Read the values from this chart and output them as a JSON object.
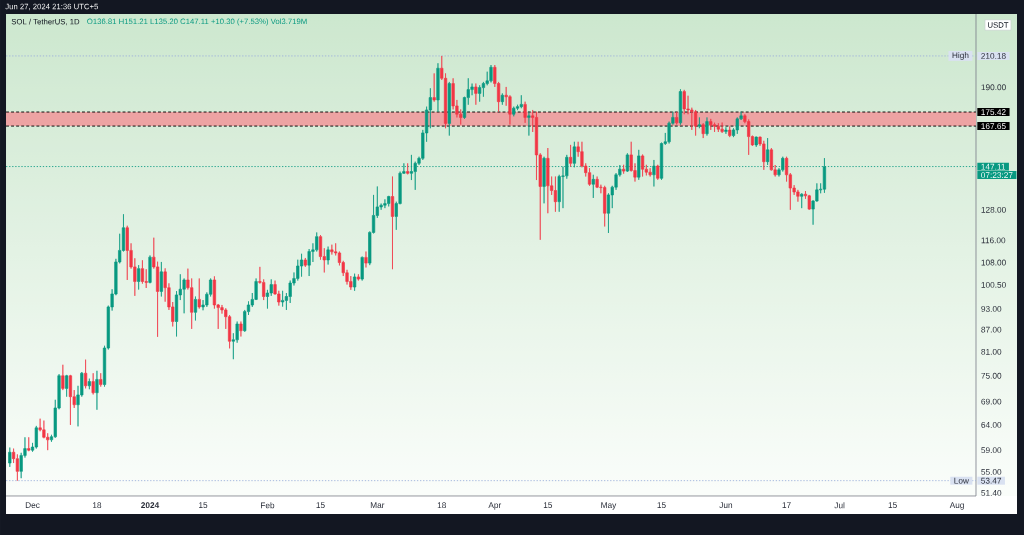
{
  "chart_data": {
    "type": "candlestick",
    "title": "SOL / TetherUS, 1D",
    "subtitle": "O136.81 H151.21 L135.20 C147.11 +10.30 (+7.53%) Vol3.719M",
    "ylabel": "USDT",
    "annotations": [
      "Jun 27, 2024 21:36 UTC+5",
      {
        "text": "High",
        "y": 210.18
      },
      "07:23:27",
      {
        "text": "Low",
        "y": 53.47
      }
    ],
    "x": [
      "2023-11-25",
      "2023-11-26",
      "2023-11-27",
      "2023-11-28",
      "2023-11-29",
      "2023-11-30",
      "2023-12-01",
      "2023-12-02",
      "2023-12-03",
      "2023-12-04",
      "2023-12-05",
      "2023-12-06",
      "2023-12-07",
      "2023-12-08",
      "2023-12-09",
      "2023-12-10",
      "2023-12-11",
      "2023-12-12",
      "2023-12-13",
      "2023-12-14",
      "2023-12-15",
      "2023-12-16",
      "2023-12-17",
      "2023-12-18",
      "2023-12-19",
      "2023-12-20",
      "2023-12-21",
      "2023-12-22",
      "2023-12-23",
      "2023-12-24",
      "2023-12-25",
      "2023-12-26",
      "2023-12-27",
      "2023-12-28",
      "2023-12-29",
      "2023-12-30",
      "2023-12-31",
      "2024-01-01",
      "2024-01-02",
      "2024-01-03",
      "2024-01-04",
      "2024-01-05",
      "2024-01-06",
      "2024-01-07",
      "2024-01-08",
      "2024-01-09",
      "2024-01-10",
      "2024-01-11",
      "2024-01-12",
      "2024-01-13",
      "2024-01-14",
      "2024-01-15",
      "2024-01-16",
      "2024-01-17",
      "2024-01-18",
      "2024-01-19",
      "2024-01-20",
      "2024-01-21",
      "2024-01-22",
      "2024-01-23",
      "2024-01-24",
      "2024-01-25",
      "2024-01-26",
      "2024-01-27",
      "2024-01-28",
      "2024-01-29",
      "2024-01-30",
      "2024-01-31",
      "2024-02-01",
      "2024-02-02",
      "2024-02-03",
      "2024-02-04",
      "2024-02-05",
      "2024-02-06",
      "2024-02-07",
      "2024-02-08",
      "2024-02-09",
      "2024-02-10",
      "2024-02-11",
      "2024-02-12",
      "2024-02-13",
      "2024-02-14",
      "2024-02-15",
      "2024-02-16",
      "2024-02-17",
      "2024-02-18",
      "2024-02-19",
      "2024-02-20",
      "2024-02-21",
      "2024-02-22",
      "2024-02-23",
      "2024-02-24",
      "2024-02-25",
      "2024-02-26",
      "2024-02-27",
      "2024-02-28",
      "2024-02-29",
      "2024-03-01",
      "2024-03-02",
      "2024-03-03",
      "2024-03-04",
      "2024-03-05",
      "2024-03-06",
      "2024-03-07",
      "2024-03-08",
      "2024-03-09",
      "2024-03-10",
      "2024-03-11",
      "2024-03-12",
      "2024-03-13",
      "2024-03-14",
      "2024-03-15",
      "2024-03-16",
      "2024-03-17",
      "2024-03-18",
      "2024-03-19",
      "2024-03-20",
      "2024-03-21",
      "2024-03-22",
      "2024-03-23",
      "2024-03-24",
      "2024-03-25",
      "2024-03-26",
      "2024-03-27",
      "2024-03-28",
      "2024-03-29",
      "2024-03-30",
      "2024-03-31",
      "2024-04-01",
      "2024-04-02",
      "2024-04-03",
      "2024-04-04",
      "2024-04-05",
      "2024-04-06",
      "2024-04-07",
      "2024-04-08",
      "2024-04-09",
      "2024-04-10",
      "2024-04-11",
      "2024-04-12",
      "2024-04-13",
      "2024-04-14",
      "2024-04-15",
      "2024-04-16",
      "2024-04-17",
      "2024-04-18",
      "2024-04-19",
      "2024-04-20",
      "2024-04-21",
      "2024-04-22",
      "2024-04-23",
      "2024-04-24",
      "2024-04-25",
      "2024-04-26",
      "2024-04-27",
      "2024-04-28",
      "2024-04-29",
      "2024-04-30",
      "2024-05-01",
      "2024-05-02",
      "2024-05-03",
      "2024-05-04",
      "2024-05-05",
      "2024-05-06",
      "2024-05-07",
      "2024-05-08",
      "2024-05-09",
      "2024-05-10",
      "2024-05-11",
      "2024-05-12",
      "2024-05-13",
      "2024-05-14",
      "2024-05-15",
      "2024-05-16",
      "2024-05-17",
      "2024-05-18",
      "2024-05-19",
      "2024-05-20",
      "2024-05-21",
      "2024-05-22",
      "2024-05-23",
      "2024-05-24",
      "2024-05-25",
      "2024-05-26",
      "2024-05-27",
      "2024-05-28",
      "2024-05-29",
      "2024-05-30",
      "2024-05-31",
      "2024-06-01",
      "2024-06-02",
      "2024-06-03",
      "2024-06-04",
      "2024-06-05",
      "2024-06-06",
      "2024-06-07",
      "2024-06-08",
      "2024-06-09",
      "2024-06-10",
      "2024-06-11",
      "2024-06-12",
      "2024-06-13",
      "2024-06-14",
      "2024-06-15",
      "2024-06-16",
      "2024-06-17",
      "2024-06-18",
      "2024-06-19",
      "2024-06-20",
      "2024-06-21",
      "2024-06-22",
      "2024-06-23",
      "2024-06-24",
      "2024-06-25",
      "2024-06-26",
      "2024-06-27"
    ],
    "ohlc": [
      [
        56.6,
        59.5,
        55.9,
        58.6
      ],
      [
        58.6,
        59.3,
        56.6,
        57.4
      ],
      [
        57.4,
        58.2,
        53.47,
        55.1
      ],
      [
        55.1,
        58.5,
        53.9,
        58.0
      ],
      [
        58.0,
        61.5,
        57.6,
        59.3
      ],
      [
        59.3,
        61.5,
        58.8,
        59.0
      ],
      [
        59.0,
        60.4,
        58.7,
        59.6
      ],
      [
        59.6,
        63.8,
        59.3,
        63.4
      ],
      [
        63.4,
        65.3,
        62.7,
        63.0
      ],
      [
        63.0,
        64.9,
        61.3,
        61.5
      ],
      [
        61.5,
        62.3,
        59.0,
        61.0
      ],
      [
        61.0,
        62.0,
        60.6,
        61.6
      ],
      [
        61.6,
        69.4,
        61.4,
        67.6
      ],
      [
        67.6,
        75.4,
        67.3,
        75.0
      ],
      [
        75.0,
        77.7,
        71.6,
        72.0
      ],
      [
        72.0,
        75.2,
        70.1,
        75.0
      ],
      [
        75.0,
        75.2,
        64.0,
        70.1
      ],
      [
        70.1,
        71.6,
        67.6,
        68.3
      ],
      [
        68.3,
        72.6,
        63.7,
        70.5
      ],
      [
        70.5,
        75.9,
        70.1,
        75.6
      ],
      [
        75.6,
        79.0,
        72.0,
        72.6
      ],
      [
        72.6,
        74.3,
        71.8,
        73.6
      ],
      [
        73.6,
        75.6,
        70.6,
        71.0
      ],
      [
        71.0,
        76.2,
        67.2,
        74.1
      ],
      [
        74.1,
        75.6,
        72.4,
        72.9
      ],
      [
        72.9,
        82.6,
        72.4,
        82.0
      ],
      [
        82.0,
        94.0,
        81.6,
        93.6
      ],
      [
        93.6,
        99.1,
        92.5,
        97.6
      ],
      [
        97.6,
        109.3,
        97.2,
        108.2
      ],
      [
        108.2,
        118.5,
        107.7,
        112.3
      ],
      [
        112.3,
        126.2,
        111.9,
        120.8
      ],
      [
        120.8,
        121.6,
        102.1,
        112.3
      ],
      [
        112.3,
        114.9,
        105.9,
        106.5
      ],
      [
        106.5,
        109.5,
        97.0,
        101.6
      ],
      [
        101.6,
        107.1,
        99.0,
        105.9
      ],
      [
        105.9,
        108.8,
        100.9,
        101.6
      ],
      [
        101.6,
        105.7,
        99.5,
        101.3
      ],
      [
        101.3,
        110.5,
        101.0,
        109.9
      ],
      [
        109.9,
        117.0,
        105.9,
        106.5
      ],
      [
        106.5,
        108.3,
        85.0,
        98.4
      ],
      [
        98.4,
        108.2,
        96.8,
        104.8
      ],
      [
        104.8,
        106.0,
        95.2,
        99.6
      ],
      [
        99.6,
        101.0,
        92.7,
        93.6
      ],
      [
        93.6,
        95.1,
        87.9,
        89.3
      ],
      [
        89.3,
        98.5,
        85.1,
        97.3
      ],
      [
        97.3,
        104.0,
        95.7,
        99.1
      ],
      [
        99.1,
        102.6,
        91.7,
        102.1
      ],
      [
        102.1,
        105.9,
        99.0,
        99.6
      ],
      [
        99.6,
        102.6,
        87.2,
        92.0
      ],
      [
        92.0,
        96.8,
        89.6,
        95.9
      ],
      [
        95.9,
        102.6,
        93.1,
        93.6
      ],
      [
        93.6,
        95.7,
        92.6,
        94.2
      ],
      [
        94.2,
        98.1,
        93.6,
        97.5
      ],
      [
        97.5,
        102.6,
        96.8,
        102.1
      ],
      [
        102.1,
        103.3,
        93.1,
        94.2
      ],
      [
        94.2,
        94.5,
        87.2,
        93.4
      ],
      [
        93.4,
        94.2,
        91.6,
        92.7
      ],
      [
        92.7,
        93.2,
        87.2,
        90.7
      ],
      [
        90.7,
        91.2,
        81.9,
        83.8
      ],
      [
        83.8,
        86.0,
        79.1,
        84.2
      ],
      [
        84.2,
        89.3,
        83.4,
        88.6
      ],
      [
        88.6,
        89.3,
        85.1,
        86.7
      ],
      [
        86.7,
        92.7,
        86.4,
        92.2
      ],
      [
        92.2,
        95.3,
        91.2,
        94.2
      ],
      [
        94.2,
        97.9,
        93.6,
        95.9
      ],
      [
        95.9,
        102.6,
        95.7,
        101.6
      ],
      [
        101.6,
        106.5,
        100.9,
        101.3
      ],
      [
        101.3,
        102.3,
        95.7,
        96.8
      ],
      [
        96.8,
        98.9,
        93.1,
        97.9
      ],
      [
        97.9,
        102.3,
        97.0,
        100.6
      ],
      [
        100.6,
        101.9,
        97.4,
        97.6
      ],
      [
        97.6,
        98.6,
        94.0,
        95.1
      ],
      [
        95.1,
        98.6,
        93.7,
        95.6
      ],
      [
        95.6,
        97.9,
        92.7,
        96.8
      ],
      [
        96.8,
        101.9,
        94.8,
        101.1
      ],
      [
        101.1,
        104.6,
        100.3,
        102.6
      ],
      [
        102.6,
        109.0,
        101.9,
        106.8
      ],
      [
        106.8,
        111.1,
        103.2,
        108.9
      ],
      [
        108.9,
        109.6,
        106.5,
        107.1
      ],
      [
        107.1,
        112.8,
        103.4,
        111.9
      ],
      [
        111.9,
        114.9,
        108.2,
        112.5
      ],
      [
        112.5,
        119.0,
        111.9,
        117.4
      ],
      [
        117.4,
        118.0,
        109.0,
        110.1
      ],
      [
        110.1,
        113.1,
        104.6,
        108.9
      ],
      [
        108.9,
        113.7,
        107.3,
        112.5
      ],
      [
        112.5,
        114.4,
        110.8,
        111.8
      ],
      [
        111.8,
        114.9,
        110.5,
        111.4
      ],
      [
        111.4,
        111.9,
        107.0,
        108.0
      ],
      [
        108.0,
        108.6,
        103.4,
        104.5
      ],
      [
        104.5,
        105.5,
        100.6,
        101.6
      ],
      [
        101.6,
        103.4,
        98.9,
        99.8
      ],
      [
        99.8,
        104.2,
        98.6,
        103.1
      ],
      [
        103.1,
        104.0,
        101.9,
        102.4
      ],
      [
        102.4,
        110.1,
        101.9,
        109.8
      ],
      [
        109.8,
        111.9,
        106.3,
        107.8
      ],
      [
        107.8,
        119.4,
        107.1,
        119.0
      ],
      [
        119.0,
        134.3,
        118.6,
        125.7
      ],
      [
        125.7,
        138.0,
        124.7,
        129.2
      ],
      [
        129.2,
        130.6,
        128.0,
        129.9
      ],
      [
        129.9,
        132.4,
        128.7,
        130.6
      ],
      [
        130.6,
        133.9,
        129.4,
        133.6
      ],
      [
        133.6,
        142.5,
        105.7,
        125.3
      ],
      [
        125.3,
        131.4,
        120.0,
        130.6
      ],
      [
        130.6,
        144.8,
        130.3,
        144.0
      ],
      [
        144.0,
        148.7,
        143.7,
        144.8
      ],
      [
        144.8,
        148.7,
        143.5,
        144.0
      ],
      [
        144.0,
        152.8,
        140.9,
        144.8
      ],
      [
        144.8,
        149.5,
        136.5,
        148.7
      ],
      [
        148.7,
        151.9,
        147.9,
        151.1
      ],
      [
        151.1,
        165.6,
        150.3,
        164.0
      ],
      [
        164.0,
        178.5,
        159.4,
        176.6
      ],
      [
        176.6,
        189.4,
        166.5,
        183.8
      ],
      [
        183.8,
        198.7,
        181.4,
        182.4
      ],
      [
        182.4,
        205.3,
        175.6,
        202.0
      ],
      [
        202.0,
        210.18,
        194.5,
        195.6
      ],
      [
        195.6,
        198.7,
        166.5,
        169.1
      ],
      [
        169.1,
        193.3,
        162.6,
        192.3
      ],
      [
        192.3,
        195.6,
        176.9,
        178.9
      ],
      [
        178.9,
        182.4,
        172.4,
        174.2
      ],
      [
        174.2,
        176.9,
        168.5,
        172.4
      ],
      [
        172.4,
        184.3,
        171.6,
        183.8
      ],
      [
        183.8,
        195.6,
        179.6,
        188.6
      ],
      [
        188.6,
        192.3,
        185.2,
        190.2
      ],
      [
        190.2,
        192.3,
        179.6,
        186.3
      ],
      [
        186.3,
        191.2,
        181.4,
        189.8
      ],
      [
        189.8,
        193.3,
        184.3,
        192.3
      ],
      [
        192.3,
        199.8,
        191.2,
        194.0
      ],
      [
        194.0,
        204.1,
        193.0,
        202.6
      ],
      [
        202.6,
        204.1,
        190.2,
        192.3
      ],
      [
        192.3,
        193.3,
        175.6,
        181.4
      ],
      [
        181.4,
        186.3,
        179.6,
        185.2
      ],
      [
        185.2,
        190.2,
        179.0,
        184.3
      ],
      [
        184.3,
        185.2,
        168.5,
        174.2
      ],
      [
        174.2,
        178.5,
        173.0,
        177.6
      ],
      [
        177.6,
        179.6,
        176.5,
        178.5
      ],
      [
        178.5,
        185.2,
        177.6,
        179.8
      ],
      [
        179.8,
        181.4,
        169.4,
        172.4
      ],
      [
        172.4,
        175.6,
        162.6,
        173.3
      ],
      [
        173.3,
        176.6,
        164.5,
        172.4
      ],
      [
        172.4,
        175.6,
        140.9,
        152.8
      ],
      [
        152.8,
        153.6,
        116.2,
        138.0
      ],
      [
        138.0,
        151.9,
        130.7,
        151.1
      ],
      [
        151.1,
        156.2,
        126.6,
        138.3
      ],
      [
        138.3,
        142.5,
        134.3,
        136.2
      ],
      [
        136.2,
        142.5,
        127.2,
        131.4
      ],
      [
        131.4,
        143.3,
        127.2,
        142.5
      ],
      [
        142.5,
        147.1,
        128.7,
        142.8
      ],
      [
        142.8,
        152.8,
        141.5,
        151.6
      ],
      [
        151.6,
        157.8,
        147.1,
        148.7
      ],
      [
        148.7,
        159.4,
        146.8,
        156.8
      ],
      [
        156.8,
        159.4,
        151.9,
        154.4
      ],
      [
        154.4,
        159.4,
        146.8,
        147.4
      ],
      [
        147.4,
        148.7,
        142.5,
        144.3
      ],
      [
        144.3,
        146.4,
        138.3,
        139.0
      ],
      [
        139.0,
        143.3,
        133.0,
        141.2
      ],
      [
        141.2,
        142.5,
        137.3,
        137.7
      ],
      [
        137.7,
        138.8,
        135.0,
        137.5
      ],
      [
        137.5,
        138.3,
        121.3,
        126.6
      ],
      [
        126.6,
        135.0,
        118.8,
        134.3
      ],
      [
        134.3,
        138.3,
        128.7,
        137.7
      ],
      [
        137.7,
        144.1,
        136.5,
        143.3
      ],
      [
        143.3,
        147.9,
        142.5,
        145.9
      ],
      [
        145.9,
        148.0,
        143.8,
        145.0
      ],
      [
        145.0,
        153.6,
        144.6,
        152.8
      ],
      [
        152.8,
        159.4,
        144.8,
        145.3
      ],
      [
        145.3,
        148.7,
        140.2,
        142.2
      ],
      [
        142.2,
        155.3,
        141.0,
        152.3
      ],
      [
        152.3,
        153.0,
        142.5,
        145.9
      ],
      [
        145.9,
        148.0,
        143.0,
        144.5
      ],
      [
        144.5,
        146.4,
        142.5,
        143.3
      ],
      [
        143.3,
        150.3,
        138.0,
        147.4
      ],
      [
        147.4,
        148.0,
        141.0,
        141.7
      ],
      [
        141.7,
        159.0,
        141.0,
        158.5
      ],
      [
        158.5,
        164.0,
        157.8,
        159.4
      ],
      [
        159.4,
        170.1,
        158.5,
        169.2
      ],
      [
        169.2,
        175.6,
        168.4,
        172.4
      ],
      [
        172.4,
        175.6,
        168.5,
        169.4
      ],
      [
        169.4,
        188.8,
        168.4,
        187.4
      ],
      [
        187.4,
        188.4,
        174.2,
        177.2
      ],
      [
        177.2,
        184.9,
        174.2,
        176.6
      ],
      [
        176.6,
        177.9,
        165.6,
        175.6
      ],
      [
        175.6,
        176.6,
        162.6,
        167.6
      ],
      [
        167.6,
        172.4,
        166.5,
        168.4
      ],
      [
        168.4,
        169.2,
        161.3,
        163.6
      ],
      [
        163.6,
        172.4,
        162.6,
        170.1
      ],
      [
        170.1,
        171.6,
        165.6,
        168.4
      ],
      [
        168.4,
        169.5,
        164.5,
        167.6
      ],
      [
        167.6,
        169.2,
        164.5,
        166.0
      ],
      [
        166.0,
        169.6,
        164.0,
        164.7
      ],
      [
        164.7,
        167.0,
        163.5,
        165.5
      ],
      [
        165.5,
        167.5,
        161.8,
        162.6
      ],
      [
        162.6,
        166.5,
        161.8,
        165.6
      ],
      [
        165.6,
        172.4,
        163.5,
        171.6
      ],
      [
        171.6,
        175.6,
        171.0,
        173.3
      ],
      [
        173.3,
        174.2,
        169.2,
        170.1
      ],
      [
        170.1,
        171.3,
        152.8,
        162.1
      ],
      [
        162.1,
        162.6,
        157.3,
        157.8
      ],
      [
        157.8,
        162.1,
        156.8,
        161.8
      ],
      [
        161.8,
        162.1,
        157.3,
        158.3
      ],
      [
        158.3,
        159.9,
        145.6,
        149.5
      ],
      [
        149.5,
        161.3,
        147.9,
        155.3
      ],
      [
        155.3,
        156.2,
        145.3,
        145.6
      ],
      [
        145.6,
        147.9,
        142.5,
        143.3
      ],
      [
        143.3,
        146.4,
        142.5,
        145.6
      ],
      [
        145.6,
        151.9,
        144.8,
        151.1
      ],
      [
        151.1,
        151.9,
        140.2,
        143.3
      ],
      [
        143.3,
        144.1,
        128.0,
        137.3
      ],
      [
        137.3,
        138.6,
        134.3,
        135.6
      ],
      [
        135.6,
        136.5,
        131.4,
        133.7
      ],
      [
        133.7,
        135.0,
        128.7,
        134.6
      ],
      [
        134.6,
        136.0,
        132.6,
        133.9
      ],
      [
        133.9,
        134.3,
        128.0,
        128.3
      ],
      [
        128.3,
        132.0,
        122.0,
        131.7
      ],
      [
        131.7,
        139.4,
        131.4,
        136.5
      ],
      [
        136.5,
        139.4,
        135.0,
        136.81
      ],
      [
        136.81,
        151.21,
        135.2,
        147.11
      ]
    ],
    "colors": [
      "#089981",
      "#f23645",
      "#f23645",
      "#089981",
      "#089981",
      "#f23645",
      "#089981",
      "#089981",
      "#f23645",
      "#f23645",
      "#f23645",
      "#089981",
      "#089981",
      "#089981",
      "#f23645",
      "#089981",
      "#f23645",
      "#f23645",
      "#089981",
      "#089981",
      "#f23645",
      "#089981",
      "#f23645",
      "#089981",
      "#f23645",
      "#089981",
      "#089981",
      "#089981",
      "#089981",
      "#089981",
      "#089981",
      "#f23645",
      "#f23645",
      "#f23645",
      "#089981",
      "#f23645",
      "#f23645",
      "#089981",
      "#f23645",
      "#f23645",
      "#089981",
      "#f23645",
      "#f23645",
      "#f23645",
      "#089981",
      "#089981",
      "#089981",
      "#f23645",
      "#f23645",
      "#089981",
      "#f23645",
      "#089981",
      "#089981",
      "#089981",
      "#f23645",
      "#f23645",
      "#f23645",
      "#f23645",
      "#f23645",
      "#089981",
      "#089981",
      "#f23645",
      "#089981",
      "#089981",
      "#089981",
      "#089981",
      "#f23645",
      "#f23645",
      "#089981",
      "#089981",
      "#f23645",
      "#f23645",
      "#089981",
      "#089981",
      "#089981",
      "#089981",
      "#089981",
      "#089981",
      "#f23645",
      "#089981",
      "#089981",
      "#089981",
      "#f23645",
      "#f23645",
      "#089981",
      "#f23645",
      "#f23645",
      "#f23645",
      "#f23645",
      "#f23645",
      "#f23645",
      "#089981",
      "#f23645",
      "#089981",
      "#f23645",
      "#089981",
      "#089981",
      "#089981",
      "#089981",
      "#089981",
      "#089981",
      "#f23645",
      "#089981",
      "#089981",
      "#089981",
      "#f23645",
      "#089981",
      "#089981",
      "#089981",
      "#089981",
      "#089981",
      "#089981",
      "#f23645",
      "#089981",
      "#f23645",
      "#f23645",
      "#089981",
      "#f23645",
      "#f23645",
      "#f23645",
      "#089981",
      "#089981",
      "#089981",
      "#f23645",
      "#089981",
      "#089981",
      "#089981",
      "#089981",
      "#f23645",
      "#f23645",
      "#089981",
      "#f23645",
      "#f23645",
      "#089981",
      "#089981",
      "#089981",
      "#f23645",
      "#089981",
      "#f23645",
      "#f23645",
      "#f23645",
      "#089981",
      "#f23645",
      "#f23645",
      "#f23645",
      "#089981",
      "#089981",
      "#089981",
      "#f23645",
      "#089981",
      "#f23645",
      "#f23645",
      "#f23645",
      "#f23645",
      "#089981",
      "#f23645",
      "#f23645",
      "#f23645",
      "#089981",
      "#089981",
      "#089981",
      "#089981",
      "#f23645",
      "#089981",
      "#f23645",
      "#f23645",
      "#089981",
      "#f23645",
      "#f23645",
      "#f23645",
      "#089981",
      "#f23645",
      "#089981",
      "#089981",
      "#089981",
      "#089981",
      "#f23645",
      "#089981",
      "#f23645",
      "#f23645",
      "#f23645",
      "#f23645",
      "#089981",
      "#f23645",
      "#089981",
      "#f23645",
      "#f23645",
      "#f23645",
      "#f23645",
      "#089981",
      "#f23645",
      "#089981",
      "#089981",
      "#089981",
      "#f23645",
      "#f23645",
      "#f23645",
      "#089981",
      "#f23645",
      "#f23645",
      "#089981",
      "#f23645",
      "#f23645",
      "#089981",
      "#089981",
      "#f23645",
      "#f23645",
      "#f23645",
      "#f23645",
      "#089981",
      "#f23645",
      "#f23645",
      "#089981",
      "#089981",
      "#089981",
      "#089981"
    ],
    "xlim": [
      "2023-11-24",
      "2024-08-06"
    ],
    "xticks": [
      {
        "value": "2023-12-01",
        "label": "Dec"
      },
      {
        "value": "2023-12-18",
        "label": "18"
      },
      {
        "value": "2024-01-01",
        "label": "2024"
      },
      {
        "value": "2024-01-15",
        "label": "15"
      },
      {
        "value": "2024-02-01",
        "label": "Feb"
      },
      {
        "value": "2024-02-15",
        "label": "15"
      },
      {
        "value": "2024-03-01",
        "label": "Mar"
      },
      {
        "value": "2024-03-18",
        "label": "18"
      },
      {
        "value": "2024-04-01",
        "label": "Apr"
      },
      {
        "value": "2024-04-15",
        "label": "15"
      },
      {
        "value": "2024-05-01",
        "label": "May"
      },
      {
        "value": "2024-05-15",
        "label": "15"
      },
      {
        "value": "2024-06-01",
        "label": "Jun"
      },
      {
        "value": "2024-06-17",
        "label": "17"
      },
      {
        "value": "2024-07-01",
        "label": "Jul"
      },
      {
        "value": "2024-07-15",
        "label": "15"
      },
      {
        "value": "2024-08-01",
        "label": "Aug"
      }
    ],
    "ylim": [
      50.9,
      240.6
    ],
    "yticks": [
      {
        "value": 51.4,
        "label": "51.40"
      },
      {
        "value": 55,
        "label": "55.00"
      },
      {
        "value": 59,
        "label": "59.00"
      },
      {
        "value": 64,
        "label": "64.00"
      },
      {
        "value": 69,
        "label": "69.00"
      },
      {
        "value": 75,
        "label": "75.00"
      },
      {
        "value": 81,
        "label": "81.00"
      },
      {
        "value": 87,
        "label": "87.00"
      },
      {
        "value": 93,
        "label": "93.00"
      },
      {
        "value": 100.5,
        "label": "100.50"
      },
      {
        "value": 108,
        "label": "108.00"
      },
      {
        "value": 116,
        "label": "116.00"
      },
      {
        "value": 128,
        "label": "128.00"
      },
      {
        "value": 190,
        "label": "190.00"
      }
    ],
    "log": true,
    "ref_lines": [
      {
        "axis": "y",
        "value": 210.18,
        "label": "210.18",
        "color": "#9fb3dc",
        "line_style": "dotted"
      },
      {
        "axis": "y",
        "value": 175.42,
        "label": "175.42",
        "color": "#000000",
        "line_style": "dashed"
      },
      {
        "axis": "y",
        "value": 167.65,
        "label": "167.65",
        "color": "#000000",
        "line_style": "dashed"
      },
      {
        "axis": "y",
        "value": 147.11,
        "label": "147.11",
        "color": "#089981",
        "line_style": "dotted"
      },
      {
        "axis": "y",
        "value": 53.47,
        "label": "53.47",
        "color": "#9fb3dc",
        "line_style": "dotted"
      }
    ],
    "bands": [
      {
        "axis": "y",
        "from": 167.65,
        "to": 175.42,
        "color": "#eda3a3"
      }
    ]
  }
}
